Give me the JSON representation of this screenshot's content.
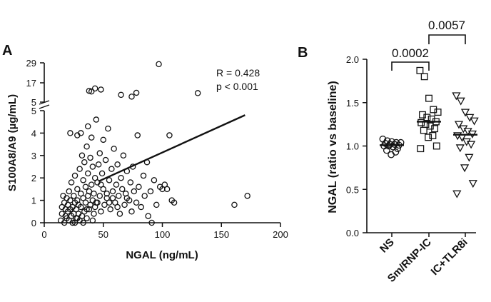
{
  "chart_data": [
    {
      "panel": "A",
      "type": "scatter",
      "xlabel": "NGAL (ng/mL)",
      "ylabel": "S100A8/A9 (µg/mL)",
      "xlim": [
        0,
        200
      ],
      "xticks": [
        "0",
        "50",
        "100",
        "150",
        "200"
      ],
      "ylim_lower": [
        0,
        5
      ],
      "yticks_lower": [
        "0",
        "1",
        "2",
        "3",
        "4",
        "5"
      ],
      "yticks_upper": [
        "5",
        "17",
        "29"
      ],
      "annotation_r": "R = 0.428",
      "annotation_p": "p < 0.001",
      "regression_line": {
        "x": [
          46,
          170
        ],
        "y": [
          1.85,
          4.8
        ]
      },
      "points_upper": [
        {
          "x": 97,
          "y": 28.2
        },
        {
          "x": 43,
          "y": 13.5
        },
        {
          "x": 48,
          "y": 12.8
        },
        {
          "x": 38,
          "y": 12.0
        },
        {
          "x": 40,
          "y": 11.6
        },
        {
          "x": 78,
          "y": 10.8
        },
        {
          "x": 130,
          "y": 10.6
        },
        {
          "x": 65,
          "y": 9.5
        },
        {
          "x": 74,
          "y": 8.4
        }
      ],
      "points_lower": [
        {
          "x": 14,
          "y": 0.1
        },
        {
          "x": 15,
          "y": 0.4
        },
        {
          "x": 15,
          "y": 0.7
        },
        {
          "x": 16,
          "y": 1.2
        },
        {
          "x": 17,
          "y": 0.0
        },
        {
          "x": 17,
          "y": 0.9
        },
        {
          "x": 18,
          "y": 0.3
        },
        {
          "x": 18,
          "y": 0.6
        },
        {
          "x": 19,
          "y": 1.1
        },
        {
          "x": 19,
          "y": 0.2
        },
        {
          "x": 20,
          "y": 0.5
        },
        {
          "x": 20,
          "y": 0.8
        },
        {
          "x": 21,
          "y": 1.4
        },
        {
          "x": 21,
          "y": 0.1
        },
        {
          "x": 22,
          "y": 0.6
        },
        {
          "x": 22,
          "y": 1.0
        },
        {
          "x": 23,
          "y": 0.3
        },
        {
          "x": 23,
          "y": 1.8
        },
        {
          "x": 24,
          "y": 0.7
        },
        {
          "x": 24,
          "y": 0.0
        },
        {
          "x": 25,
          "y": 0.4
        },
        {
          "x": 25,
          "y": 1.2
        },
        {
          "x": 26,
          "y": 0.9
        },
        {
          "x": 26,
          "y": 2.1
        },
        {
          "x": 27,
          "y": 0.2
        },
        {
          "x": 27,
          "y": 0.6
        },
        {
          "x": 28,
          "y": 1.5
        },
        {
          "x": 28,
          "y": 1.0
        },
        {
          "x": 29,
          "y": 0.4
        },
        {
          "x": 29,
          "y": 0.8
        },
        {
          "x": 30,
          "y": 2.4
        },
        {
          "x": 30,
          "y": 0.1
        },
        {
          "x": 31,
          "y": 1.3
        },
        {
          "x": 31,
          "y": 0.7
        },
        {
          "x": 32,
          "y": 3.0
        },
        {
          "x": 32,
          "y": 0.3
        },
        {
          "x": 33,
          "y": 1.1
        },
        {
          "x": 33,
          "y": 1.9
        },
        {
          "x": 34,
          "y": 0.5
        },
        {
          "x": 34,
          "y": 2.7
        },
        {
          "x": 35,
          "y": 0.9
        },
        {
          "x": 35,
          "y": 1.6
        },
        {
          "x": 36,
          "y": 0.2
        },
        {
          "x": 36,
          "y": 3.4
        },
        {
          "x": 37,
          "y": 1.2
        },
        {
          "x": 37,
          "y": 2.2
        },
        {
          "x": 38,
          "y": 0.6
        },
        {
          "x": 38,
          "y": 1.4
        },
        {
          "x": 39,
          "y": 2.9
        },
        {
          "x": 39,
          "y": 0.8
        },
        {
          "x": 40,
          "y": 1.7
        },
        {
          "x": 40,
          "y": 3.8
        },
        {
          "x": 41,
          "y": 1.0
        },
        {
          "x": 41,
          "y": 2.5
        },
        {
          "x": 42,
          "y": 0.4
        },
        {
          "x": 42,
          "y": 1.3
        },
        {
          "x": 43,
          "y": 2.0
        },
        {
          "x": 43,
          "y": 0.7
        },
        {
          "x": 44,
          "y": 4.6
        },
        {
          "x": 45,
          "y": 1.8
        },
        {
          "x": 45,
          "y": 0.9
        },
        {
          "x": 46,
          "y": 2.6
        },
        {
          "x": 47,
          "y": 1.2
        },
        {
          "x": 47,
          "y": 3.1
        },
        {
          "x": 48,
          "y": 0.5
        },
        {
          "x": 49,
          "y": 2.2
        },
        {
          "x": 50,
          "y": 1.5
        },
        {
          "x": 50,
          "y": 3.7
        },
        {
          "x": 51,
          "y": 0.8
        },
        {
          "x": 52,
          "y": 2.8
        },
        {
          "x": 53,
          "y": 1.1
        },
        {
          "x": 54,
          "y": 4.2
        },
        {
          "x": 55,
          "y": 1.9
        },
        {
          "x": 56,
          "y": 0.6
        },
        {
          "x": 57,
          "y": 2.4
        },
        {
          "x": 58,
          "y": 1.4
        },
        {
          "x": 59,
          "y": 3.3
        },
        {
          "x": 60,
          "y": 0.9
        },
        {
          "x": 61,
          "y": 1.7
        },
        {
          "x": 62,
          "y": 2.6
        },
        {
          "x": 63,
          "y": 1.2
        },
        {
          "x": 64,
          "y": 0.4
        },
        {
          "x": 65,
          "y": 2.0
        },
        {
          "x": 66,
          "y": 1.5
        },
        {
          "x": 67,
          "y": 3.0
        },
        {
          "x": 68,
          "y": 0.8
        },
        {
          "x": 69,
          "y": 1.3
        },
        {
          "x": 70,
          "y": 2.3
        },
        {
          "x": 72,
          "y": 1.0
        },
        {
          "x": 73,
          "y": 1.8
        },
        {
          "x": 74,
          "y": 0.5
        },
        {
          "x": 75,
          "y": 2.5
        },
        {
          "x": 76,
          "y": 1.4
        },
        {
          "x": 78,
          "y": 0.9
        },
        {
          "x": 79,
          "y": 3.9
        },
        {
          "x": 80,
          "y": 1.6
        },
        {
          "x": 82,
          "y": 0.7
        },
        {
          "x": 84,
          "y": 2.1
        },
        {
          "x": 85,
          "y": 1.2
        },
        {
          "x": 87,
          "y": 2.7
        },
        {
          "x": 88,
          "y": 0.3
        },
        {
          "x": 90,
          "y": 1.4
        },
        {
          "x": 91,
          "y": 0.0
        },
        {
          "x": 93,
          "y": 1.9
        },
        {
          "x": 95,
          "y": 0.8
        },
        {
          "x": 98,
          "y": 1.6
        },
        {
          "x": 100,
          "y": 1.5
        },
        {
          "x": 102,
          "y": 1.7
        },
        {
          "x": 104,
          "y": 1.5
        },
        {
          "x": 106,
          "y": 3.9
        },
        {
          "x": 108,
          "y": 1.0
        },
        {
          "x": 110,
          "y": 0.9
        },
        {
          "x": 161,
          "y": 0.8
        },
        {
          "x": 172,
          "y": 1.2
        },
        {
          "x": 26,
          "y": 0.0
        },
        {
          "x": 28,
          "y": 0.2
        },
        {
          "x": 33,
          "y": 0.0
        },
        {
          "x": 36,
          "y": 0.6
        },
        {
          "x": 41,
          "y": 0.1
        },
        {
          "x": 44,
          "y": 0.9
        },
        {
          "x": 31,
          "y": 4.0
        },
        {
          "x": 28,
          "y": 3.9
        },
        {
          "x": 22,
          "y": 4.0
        },
        {
          "x": 37,
          "y": 4.3
        },
        {
          "x": 53,
          "y": 1.3
        },
        {
          "x": 58,
          "y": 1.1
        },
        {
          "x": 62,
          "y": 0.7
        },
        {
          "x": 48,
          "y": 1.7
        },
        {
          "x": 55,
          "y": 0.9
        },
        {
          "x": 70,
          "y": 1.1
        }
      ]
    },
    {
      "panel": "B",
      "type": "scatter",
      "ylabel": "NGAL (ratio vs baseline)",
      "ylim": [
        0.0,
        2.0
      ],
      "yticks": [
        "0.0",
        "0.5",
        "1.0",
        "1.5",
        "2.0"
      ],
      "categories": [
        "NS",
        "Sm/RNP-IC",
        "IC+TLR8i"
      ],
      "medians": [
        1.01,
        1.28,
        1.13
      ],
      "significance": [
        {
          "pair": [
            "NS",
            "Sm/RNP-IC"
          ],
          "label": "0.0002"
        },
        {
          "pair": [
            "Sm/RNP-IC",
            "IC+TLR8i"
          ],
          "label": "0.0057"
        }
      ],
      "series": [
        {
          "name": "NS",
          "marker": "circle",
          "values": [
            1.08,
            1.06,
            1.05,
            1.04,
            1.04,
            1.03,
            1.02,
            1.02,
            1.01,
            1.0,
            1.0,
            0.99,
            0.97,
            0.95,
            0.93,
            0.9
          ]
        },
        {
          "name": "Sm/RNP-IC",
          "marker": "square",
          "values": [
            1.87,
            1.8,
            1.55,
            1.42,
            1.39,
            1.36,
            1.33,
            1.31,
            1.28,
            1.27,
            1.25,
            1.23,
            1.2,
            1.18,
            1.12,
            1.1,
            1.0,
            0.97
          ]
        },
        {
          "name": "IC+TLR8i",
          "marker": "triangle-down",
          "values": [
            1.58,
            1.52,
            1.39,
            1.33,
            1.29,
            1.25,
            1.2,
            1.17,
            1.14,
            1.12,
            1.1,
            1.05,
            1.02,
            0.98,
            0.87,
            0.75,
            0.57,
            0.45
          ]
        }
      ]
    }
  ],
  "panel_labels": [
    "A",
    "B"
  ]
}
